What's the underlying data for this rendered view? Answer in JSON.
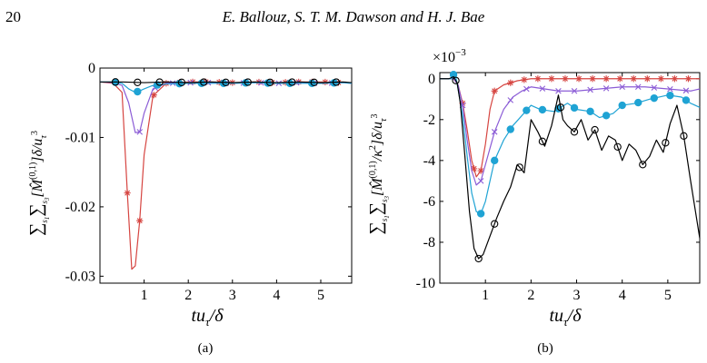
{
  "page": {
    "number": "20",
    "running_header": "E. Ballouz, S. T. M. Dawson and H. J. Bae"
  },
  "chart_data": [
    {
      "type": "line",
      "panel": "(a)",
      "caption": "(a)",
      "xlabel": "tu_τ/δ",
      "ylabel": "Σ_s1 Σ_s3 [M̂^(0,1)] δ/u_τ^3",
      "xlim": [
        0.0,
        5.7
      ],
      "ylim": [
        -0.031,
        0.0
      ],
      "x_ticks": [
        1,
        2,
        3,
        4,
        5
      ],
      "x_tick_labels": [
        "1",
        "2",
        "3",
        "4",
        "5"
      ],
      "y_ticks": [
        0,
        -0.01,
        -0.02,
        -0.03
      ],
      "y_tick_labels": [
        "0",
        "-0.01",
        "-0.02",
        "-0.03"
      ],
      "series": [
        {
          "color": "#d64541",
          "marker": "asterisk",
          "x": [
            0.0,
            0.3,
            0.5,
            0.62,
            0.72,
            0.8,
            0.9,
            1.0,
            1.2,
            1.5,
            2.0,
            2.5,
            3.0,
            3.5,
            4.0,
            4.5,
            5.0,
            5.5,
            5.7
          ],
          "y": [
            -0.002,
            -0.0022,
            -0.0035,
            -0.018,
            -0.029,
            -0.0285,
            -0.022,
            -0.0125,
            -0.004,
            -0.0022,
            -0.002,
            -0.002,
            -0.0021,
            -0.002,
            -0.0021,
            -0.002,
            -0.002,
            -0.0021,
            -0.0021
          ],
          "marker_x": [
            0.62,
            0.9,
            1.22,
            1.5,
            1.8,
            2.1,
            2.4,
            2.7,
            3.0,
            3.3,
            3.6,
            3.9,
            4.2,
            4.5,
            4.8,
            5.1,
            5.4
          ]
        },
        {
          "color": "#8b5cd6",
          "marker": "cross",
          "x": [
            0.0,
            0.3,
            0.5,
            0.65,
            0.8,
            0.9,
            1.0,
            1.2,
            1.5,
            2.0,
            2.5,
            3.0,
            3.5,
            4.0,
            4.5,
            5.0,
            5.5,
            5.7
          ],
          "y": [
            -0.002,
            -0.0021,
            -0.0025,
            -0.005,
            -0.0093,
            -0.0092,
            -0.0065,
            -0.003,
            -0.0022,
            -0.0021,
            -0.0021,
            -0.0022,
            -0.0021,
            -0.0022,
            -0.0021,
            -0.0022,
            -0.0021,
            -0.0022
          ],
          "marker_x": [
            0.9,
            1.25,
            1.65,
            2.05,
            2.45,
            2.85,
            3.25,
            3.65,
            4.05,
            4.45,
            4.85,
            5.25
          ]
        },
        {
          "color": "#1fa3d4",
          "marker": "filled-circle",
          "x": [
            0.0,
            0.3,
            0.5,
            0.65,
            0.8,
            0.9,
            1.0,
            1.2,
            1.5,
            2.0,
            2.5,
            3.0,
            3.5,
            4.0,
            4.5,
            5.0,
            5.5,
            5.7
          ],
          "y": [
            -0.002,
            -0.002,
            -0.0022,
            -0.003,
            -0.0035,
            -0.0033,
            -0.003,
            -0.0025,
            -0.0023,
            -0.0022,
            -0.0022,
            -0.0022,
            -0.0021,
            -0.0022,
            -0.0022,
            -0.0022,
            -0.0021,
            -0.0022
          ],
          "marker_x": [
            0.35,
            0.85,
            1.3,
            1.8,
            2.3,
            2.8,
            3.3,
            3.8,
            4.3,
            4.8,
            5.3
          ]
        },
        {
          "color": "#000000",
          "marker": "open-circle",
          "x": [
            0.0,
            0.5,
            1.0,
            1.5,
            2.0,
            2.5,
            3.0,
            3.5,
            4.0,
            4.5,
            5.0,
            5.5,
            5.7
          ],
          "y": [
            -0.002,
            -0.002,
            -0.0021,
            -0.002,
            -0.0021,
            -0.002,
            -0.0021,
            -0.002,
            -0.0021,
            -0.002,
            -0.0021,
            -0.002,
            -0.0021
          ],
          "marker_x": [
            0.35,
            0.85,
            1.35,
            1.85,
            2.35,
            2.85,
            3.35,
            3.85,
            4.35,
            4.85,
            5.35
          ]
        }
      ]
    },
    {
      "type": "line",
      "panel": "(b)",
      "caption": "(b)",
      "xlabel": "tu_τ/δ",
      "ylabel": "Σ_s1 Σ_s3 [M̂^(0,1)/κ^2] δ/u_τ^3",
      "scale_label": "×10^-3",
      "xlim": [
        0.0,
        5.7
      ],
      "ylim": [
        -10,
        0.3
      ],
      "x_ticks": [
        1,
        2,
        3,
        4,
        5
      ],
      "x_tick_labels": [
        "1",
        "2",
        "3",
        "4",
        "5"
      ],
      "y_ticks": [
        0,
        -2,
        -4,
        -6,
        -8,
        -10
      ],
      "y_tick_labels": [
        "0",
        "-2",
        "-4",
        "-6",
        "-8",
        "-10"
      ],
      "series": [
        {
          "color": "#d64541",
          "marker": "asterisk",
          "x": [
            0.0,
            0.3,
            0.4,
            0.5,
            0.6,
            0.7,
            0.8,
            0.9,
            1.0,
            1.1,
            1.2,
            1.4,
            1.7,
            2.0,
            2.5,
            3.0,
            3.5,
            4.0,
            4.5,
            5.0,
            5.5,
            5.7
          ],
          "y": [
            0.0,
            0.0,
            -0.3,
            -1.2,
            -2.5,
            -4.0,
            -4.8,
            -4.5,
            -3.2,
            -1.5,
            -0.6,
            -0.3,
            -0.1,
            0.0,
            0.0,
            0.0,
            0.0,
            0.0,
            0.0,
            0.0,
            0.0,
            0.0
          ],
          "marker_x": [
            0.5,
            0.75,
            0.9,
            1.2,
            1.55,
            1.85,
            2.15,
            2.45,
            2.75,
            3.05,
            3.35,
            3.65,
            3.95,
            4.25,
            4.55,
            4.85,
            5.15,
            5.45
          ]
        },
        {
          "color": "#8b5cd6",
          "marker": "cross",
          "x": [
            0.0,
            0.3,
            0.4,
            0.5,
            0.6,
            0.7,
            0.8,
            0.9,
            1.0,
            1.2,
            1.4,
            1.6,
            1.8,
            2.0,
            2.3,
            2.6,
            3.0,
            3.5,
            4.0,
            4.5,
            5.0,
            5.5,
            5.7
          ],
          "y": [
            0.0,
            0.0,
            -0.3,
            -1.3,
            -3.0,
            -4.5,
            -5.2,
            -5.0,
            -4.2,
            -2.6,
            -1.5,
            -0.9,
            -0.6,
            -0.4,
            -0.5,
            -0.6,
            -0.6,
            -0.5,
            -0.4,
            -0.4,
            -0.5,
            -0.6,
            -0.5
          ],
          "marker_x": [
            0.5,
            0.9,
            1.2,
            1.55,
            1.9,
            2.25,
            2.6,
            2.95,
            3.3,
            3.65,
            4.0,
            4.35,
            4.7,
            5.05,
            5.4
          ]
        },
        {
          "color": "#1fa3d4",
          "marker": "filled-circle",
          "x": [
            0.0,
            0.25,
            0.3,
            0.35,
            0.4,
            0.5,
            0.6,
            0.7,
            0.8,
            0.9,
            1.0,
            1.1,
            1.2,
            1.4,
            1.6,
            1.8,
            2.0,
            2.2,
            2.5,
            2.8,
            3.0,
            3.3,
            3.5,
            3.8,
            4.0,
            4.3,
            4.6,
            5.0,
            5.3,
            5.5,
            5.7
          ],
          "y": [
            0.0,
            0.0,
            0.2,
            0.1,
            -0.5,
            -1.8,
            -3.8,
            -5.6,
            -6.5,
            -6.6,
            -6.0,
            -5.0,
            -4.0,
            -3.0,
            -2.3,
            -1.8,
            -1.3,
            -1.5,
            -1.6,
            -1.2,
            -1.5,
            -1.6,
            -1.9,
            -1.7,
            -1.3,
            -1.2,
            -1.0,
            -0.8,
            -0.9,
            -1.2,
            -1.4
          ],
          "marker_x": [
            0.3,
            0.9,
            1.2,
            1.55,
            1.9,
            2.25,
            2.6,
            2.95,
            3.3,
            3.65,
            4.0,
            4.35,
            4.7,
            5.05,
            5.4
          ]
        },
        {
          "color": "#000000",
          "marker": "open-circle",
          "x": [
            0.0,
            0.2,
            0.3,
            0.38,
            0.45,
            0.55,
            0.65,
            0.75,
            0.85,
            0.95,
            1.05,
            1.15,
            1.25,
            1.4,
            1.55,
            1.7,
            1.85,
            2.0,
            2.15,
            2.3,
            2.45,
            2.6,
            2.7,
            2.8,
            2.95,
            3.1,
            3.25,
            3.4,
            3.55,
            3.7,
            3.85,
            4.0,
            4.15,
            4.3,
            4.45,
            4.6,
            4.75,
            4.9,
            5.05,
            5.2,
            5.35,
            5.5,
            5.7
          ],
          "y": [
            0.0,
            0.0,
            0.1,
            -0.2,
            -1.2,
            -3.8,
            -6.5,
            -8.3,
            -8.8,
            -8.6,
            -8.0,
            -7.4,
            -6.8,
            -6.0,
            -5.3,
            -4.2,
            -4.6,
            -2.0,
            -2.6,
            -3.3,
            -2.3,
            -0.8,
            -2.0,
            -2.3,
            -2.6,
            -2.0,
            -3.0,
            -2.5,
            -3.5,
            -2.8,
            -3.0,
            -4.0,
            -3.2,
            -3.5,
            -4.2,
            -3.8,
            -3.0,
            -3.6,
            -2.2,
            -1.3,
            -2.8,
            -5.0,
            -7.8
          ],
          "marker_x": [
            0.35,
            0.85,
            1.2,
            1.75,
            2.25,
            2.65,
            2.95,
            3.4,
            3.9,
            4.45,
            4.95,
            5.35
          ]
        }
      ]
    }
  ]
}
